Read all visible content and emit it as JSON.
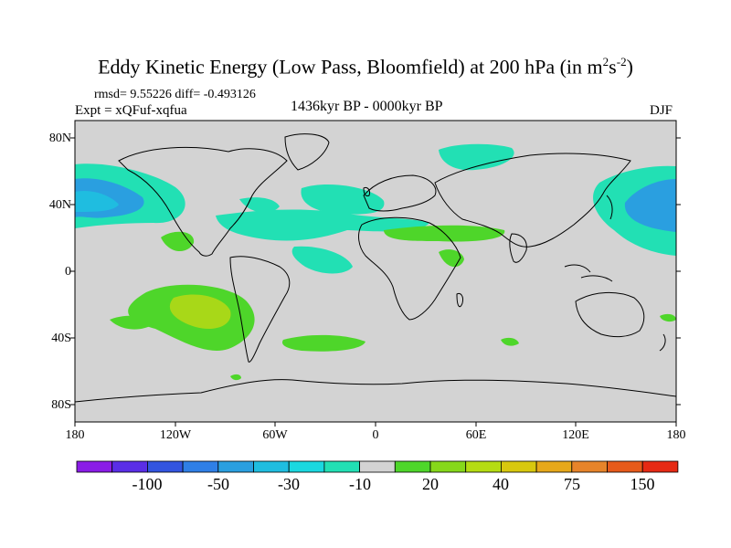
{
  "title_main": "Eddy Kinetic Energy (Low Pass, Bloomfield) at 200 hPa (in m",
  "title_sup1": "2",
  "title_mid": "s",
  "title_sup2": "-2",
  "title_end": ")",
  "stats": "rmsd= 9.55226 diff= -0.493126",
  "experiment": "Expt = xQFuf-xqfua",
  "period": "1436kyr BP - 0000kyr BP",
  "season": "DJF",
  "lat_labels": [
    "80N",
    "40N",
    "0",
    "40S",
    "80S"
  ],
  "lon_labels": [
    "180",
    "120W",
    "60W",
    "0",
    "60E",
    "120E",
    "180"
  ],
  "colorbar": {
    "colors": [
      "#8a1ce6",
      "#5a2ee6",
      "#3355e0",
      "#2f7fe6",
      "#2a9fe0",
      "#1fbde0",
      "#1ad8e0",
      "#22e0b4",
      "#d3d3d3",
      "#4ed62a",
      "#86d81a",
      "#b5dc12",
      "#d8c80e",
      "#e6a81a",
      "#e6842a",
      "#e65a1a",
      "#e62a14"
    ],
    "labels": [
      "-100",
      "-50",
      "-30",
      "-10",
      "20",
      "40",
      "75",
      "150"
    ]
  },
  "map_colors": {
    "background": "#d3d3d3",
    "cyan": "#22e0b4",
    "blue": "#2a9fe0",
    "deep_blue": "#1fbde0",
    "green": "#4ed62a",
    "lime": "#a8d818"
  }
}
